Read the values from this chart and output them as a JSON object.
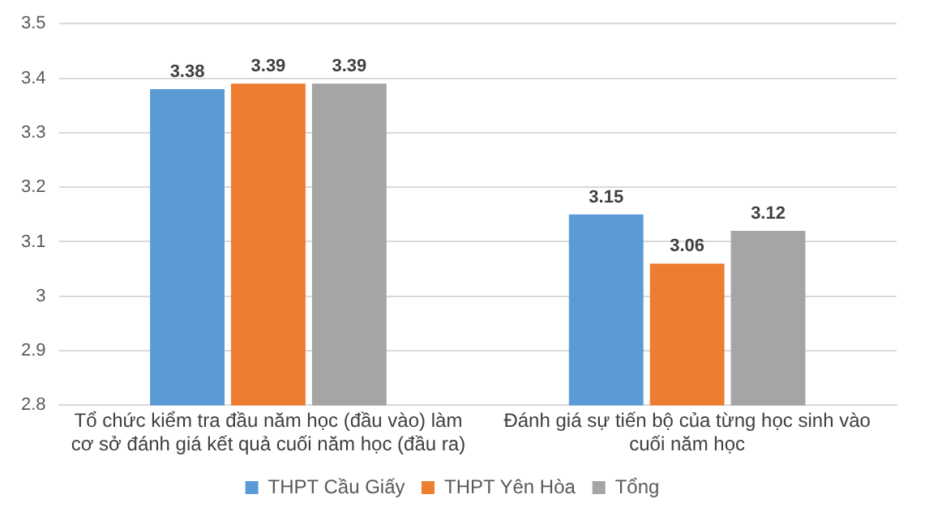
{
  "chart_data": {
    "type": "bar",
    "categories": [
      "Tổ chức kiểm tra đầu năm học (đầu vào) làm cơ sở đánh giá kết quả cuối năm học (đầu ra)",
      "Đánh giá sự tiến bộ của từng học sinh vào cuối năm học"
    ],
    "series": [
      {
        "name": "THPT Cầu Giấy",
        "color": "#5b9bd5",
        "values": [
          3.38,
          3.15
        ]
      },
      {
        "name": "THPT Yên Hòa",
        "color": "#ed7d31",
        "values": [
          3.39,
          3.06
        ]
      },
      {
        "name": "Tổng",
        "color": "#a5a5a5",
        "values": [
          3.39,
          3.12
        ]
      }
    ],
    "ylim": [
      2.8,
      3.5
    ],
    "yticks": [
      2.8,
      2.9,
      3,
      3.1,
      3.2,
      3.3,
      3.4,
      3.5
    ],
    "grid": "y",
    "legend": "bottom",
    "data_labels": true
  }
}
